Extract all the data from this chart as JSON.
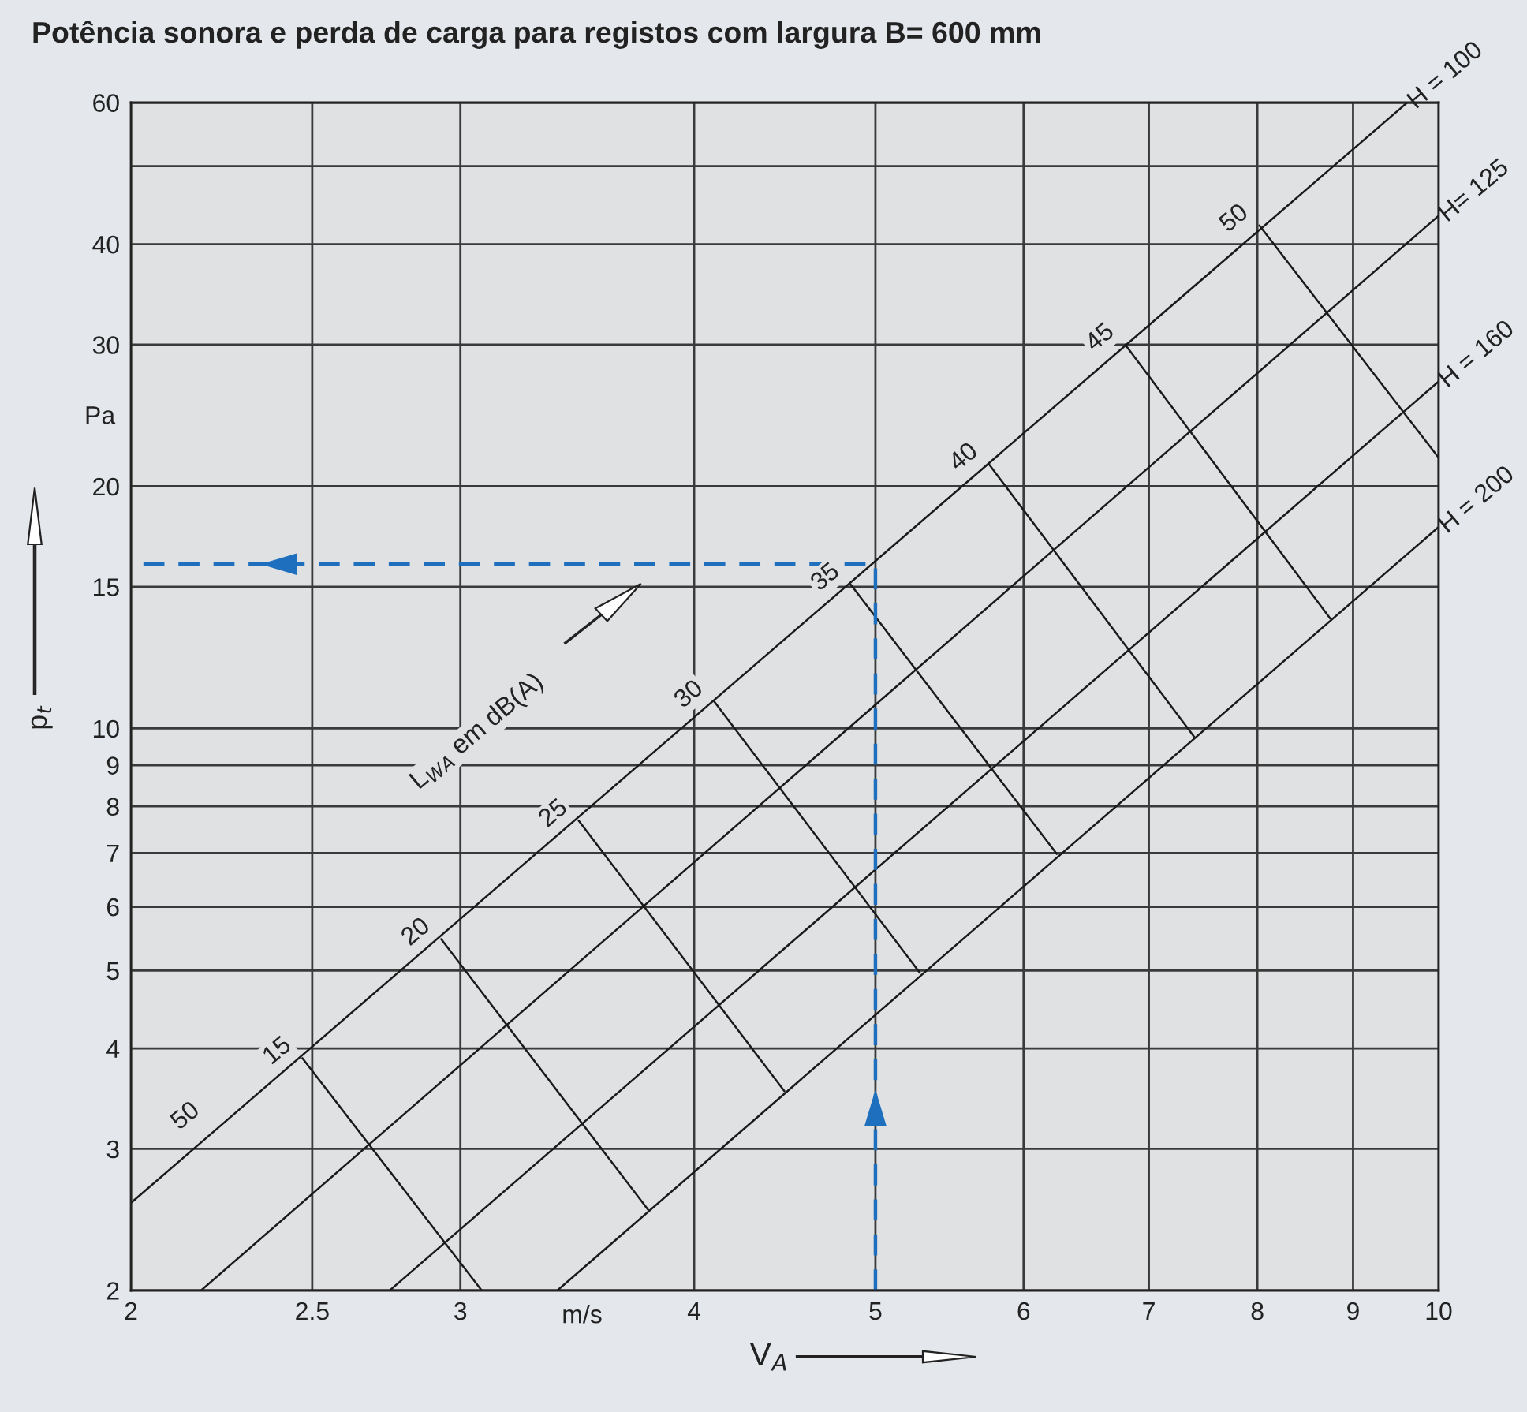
{
  "chart_data": {
    "type": "line",
    "title": "Potência sonora e perda de carga para registos com largura B= 600 mm",
    "xlabel": "V$_{A}$",
    "ylabel": "p$_{t}$",
    "log": "xy",
    "xlim": [
      2,
      10
    ],
    "ylim": [
      2,
      60
    ],
    "xticks": [
      2,
      2.5,
      3,
      4,
      5,
      6,
      7,
      8,
      9,
      10
    ],
    "yticks": [
      2,
      3,
      4,
      5,
      6,
      7,
      8,
      9,
      10,
      15,
      20,
      30,
      40,
      {
        "value": 50,
        "label": null
      },
      60
    ],
    "grid": true,
    "series": [
      {
        "name": "H = 100",
        "color": "#1a1a1a",
        "x": [
          2,
          9.62
        ],
        "values": [
          2.57,
          60
        ]
      },
      {
        "name": "H= 125",
        "color": "#1a1a1a",
        "x": [
          2.18,
          10
        ],
        "values": [
          2,
          43.4
        ]
      },
      {
        "name": "H = 160",
        "color": "#1a1a1a",
        "x": [
          2.75,
          10
        ],
        "values": [
          2,
          27.0
        ]
      },
      {
        "name": "H = 200",
        "color": "#1a1a1a",
        "x": [
          3.38,
          10
        ],
        "values": [
          2,
          17.8
        ]
      },
      {
        "name": "15",
        "color": "#1a1a1a",
        "x": [
          2.47,
          3.08
        ],
        "values": [
          3.89,
          2
        ]
      },
      {
        "name": "20",
        "color": "#1a1a1a",
        "x": [
          2.93,
          3.78
        ],
        "values": [
          5.47,
          2.52
        ]
      },
      {
        "name": "25",
        "color": "#1a1a1a",
        "x": [
          3.47,
          4.47
        ],
        "values": [
          7.68,
          3.54
        ]
      },
      {
        "name": "30",
        "color": "#1a1a1a",
        "x": [
          4.1,
          5.28
        ],
        "values": [
          10.8,
          4.97
        ]
      },
      {
        "name": "35",
        "color": "#1a1a1a",
        "x": [
          4.85,
          6.25
        ],
        "values": [
          15.1,
          6.98
        ]
      },
      {
        "name": "40",
        "color": "#1a1a1a",
        "x": [
          5.75,
          7.4
        ],
        "values": [
          21.3,
          9.77
        ]
      },
      {
        "name": "45",
        "color": "#1a1a1a",
        "x": [
          6.8,
          8.75
        ],
        "values": [
          30.0,
          13.7
        ]
      },
      {
        "name": "50",
        "color": "#1a1a1a",
        "x": [
          8.02,
          10
        ],
        "values": [
          42.2,
          21.7
        ]
      },
      {
        "color": "#1f6fbf",
        "line_style": "dashed",
        "x": [
          5,
          5,
          2
        ],
        "values": [
          2,
          16,
          16
        ]
      }
    ],
    "annotations": [
      "L$_{WA}$ em dB(A)",
      "Pa",
      "m/s",
      {
        "text": "50",
        "x": 2.14,
        "y": 3.29
      }
    ]
  }
}
